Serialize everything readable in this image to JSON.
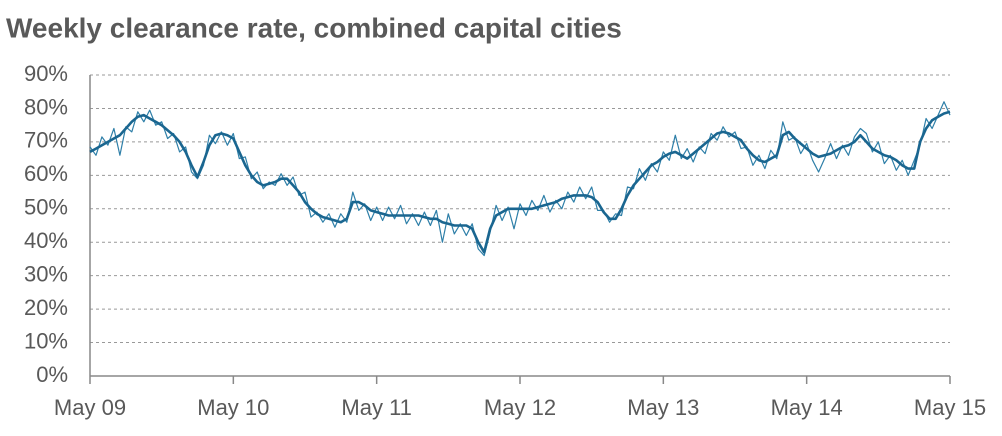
{
  "chart_data": {
    "type": "line",
    "title": "Weekly clearance rate, combined capital cities",
    "x": [
      0,
      0.5,
      1,
      1.5,
      2,
      2.5,
      3,
      3.5,
      4,
      4.5,
      5,
      5.5,
      6,
      6.5,
      7,
      7.5,
      8,
      8.5,
      9,
      9.5,
      10,
      10.5,
      11,
      11.5,
      12,
      12.5,
      13,
      13.5,
      14,
      14.5,
      15,
      15.5,
      16,
      16.5,
      17,
      17.5,
      18,
      18.5,
      19,
      19.5,
      20,
      20.5,
      21,
      21.5,
      22,
      22.5,
      23,
      23.5,
      24,
      24.5,
      25,
      25.5,
      26,
      26.5,
      27,
      27.5,
      28,
      28.5,
      29,
      29.5,
      30,
      30.5,
      31,
      31.5,
      32,
      32.5,
      33,
      33.5,
      34,
      34.5,
      35,
      35.5,
      36,
      36.5,
      37,
      37.5,
      38,
      38.5,
      39,
      39.5,
      40,
      40.5,
      41,
      41.5,
      42,
      42.5,
      43,
      43.5,
      44,
      44.5,
      45,
      45.5,
      46,
      46.5,
      47,
      47.5,
      48,
      48.5,
      49,
      49.5,
      50,
      50.5,
      51,
      51.5,
      52,
      52.5,
      53,
      53.5,
      54,
      54.5,
      55,
      55.5,
      56,
      56.5,
      57,
      57.5,
      58,
      58.5,
      59,
      59.5,
      60,
      60.5,
      61,
      61.5,
      62,
      62.5,
      63,
      63.5,
      64,
      64.5,
      65,
      65.5,
      66,
      66.5,
      67,
      67.5,
      68,
      68.5,
      69,
      69.5,
      70,
      70.5,
      71,
      71.5,
      72
    ],
    "series": [
      {
        "color": "#2e7fa8",
        "linewidth": 1.2,
        "values": [
          68.5,
          66,
          71.5,
          69,
          74,
          66,
          74.5,
          73,
          79,
          76,
          79.5,
          75,
          76,
          71,
          72.5,
          67,
          68.5,
          61,
          59,
          63,
          72,
          69.5,
          73,
          69,
          72.5,
          65,
          65.5,
          59,
          61,
          56,
          58,
          57,
          60.5,
          57,
          59.5,
          54,
          55,
          47.5,
          49,
          46,
          48.5,
          44.5,
          48.5,
          46,
          55,
          49.5,
          51.5,
          46.5,
          50.5,
          46.5,
          50.5,
          47,
          51,
          45.5,
          48.5,
          45,
          49,
          45,
          49.5,
          40,
          48.5,
          42.5,
          45.5,
          42,
          45.5,
          38,
          36,
          43,
          51,
          46.5,
          50.5,
          44,
          51.5,
          48,
          52.5,
          49.5,
          54,
          49,
          52.5,
          50,
          55,
          52,
          56.5,
          53,
          56.5,
          49.5,
          49.5,
          46,
          48.5,
          48,
          56.5,
          56,
          62,
          58.5,
          63.5,
          61,
          67,
          64.5,
          72,
          65,
          68,
          64,
          68.5,
          66.5,
          72.5,
          70.5,
          74.5,
          71.5,
          73,
          68,
          68.5,
          63,
          66,
          62,
          67.5,
          65,
          76,
          70.5,
          71.5,
          66.5,
          69.5,
          64.5,
          61,
          65,
          69.5,
          65,
          69,
          66,
          71.5,
          74,
          72.5,
          67,
          70,
          63.5,
          66,
          61.5,
          64.5,
          60,
          64.5,
          69,
          77,
          74,
          78,
          82,
          78
        ]
      },
      {
        "color": "#1a6690",
        "linewidth": 2.6,
        "values": [
          67,
          68,
          69,
          70,
          71,
          72,
          74,
          76,
          77.5,
          78,
          77,
          76,
          75,
          73.5,
          72,
          70,
          67,
          63,
          59.5,
          64,
          69,
          72,
          72.5,
          72,
          71,
          67,
          63,
          60,
          58,
          57,
          57.5,
          58,
          59,
          59,
          57,
          55,
          52,
          50,
          48.5,
          47.5,
          47,
          46.5,
          46,
          47,
          52,
          52,
          51,
          49.5,
          49,
          48.5,
          48,
          48,
          48,
          48,
          48,
          48,
          47.5,
          47,
          47,
          46,
          45.5,
          45,
          45,
          45,
          44,
          40,
          37,
          44,
          48,
          49,
          50,
          50,
          50,
          50,
          50,
          50.5,
          51,
          51.5,
          52,
          53,
          53.5,
          54,
          54,
          54,
          53.5,
          52,
          49,
          47,
          47,
          50,
          54,
          57,
          59,
          61,
          63,
          64,
          65.5,
          66.5,
          67,
          66,
          65,
          66.5,
          68,
          69.5,
          71,
          72.5,
          73,
          72.5,
          71.5,
          70.5,
          68,
          66,
          64.5,
          64,
          65,
          66,
          72,
          73,
          71,
          69.5,
          68,
          66.5,
          65.5,
          66,
          66.5,
          67.5,
          68.5,
          69,
          70,
          72,
          70,
          68,
          67,
          66,
          65.5,
          64.5,
          63,
          62,
          62,
          70,
          74,
          76.5,
          77.5,
          78.5,
          79
        ]
      }
    ],
    "xlim": [
      0,
      72
    ],
    "xticks": [
      {
        "value": 0,
        "label": "May 09"
      },
      {
        "value": 12,
        "label": "May 10"
      },
      {
        "value": 24,
        "label": "May 11"
      },
      {
        "value": 36,
        "label": "May 12"
      },
      {
        "value": 48,
        "label": "May 13"
      },
      {
        "value": 60,
        "label": "May 14"
      },
      {
        "value": 72,
        "label": "May 15"
      }
    ],
    "ylim": [
      0,
      90
    ],
    "yticks": [
      {
        "value": 0,
        "label": "0%"
      },
      {
        "value": 10,
        "label": "10%"
      },
      {
        "value": 20,
        "label": "20%"
      },
      {
        "value": 30,
        "label": "30%"
      },
      {
        "value": 40,
        "label": "40%"
      },
      {
        "value": 50,
        "label": "50%"
      },
      {
        "value": 60,
        "label": "60%"
      },
      {
        "value": 70,
        "label": "70%"
      },
      {
        "value": 80,
        "label": "80%"
      },
      {
        "value": 90,
        "label": "90%"
      }
    ],
    "grid": true
  }
}
